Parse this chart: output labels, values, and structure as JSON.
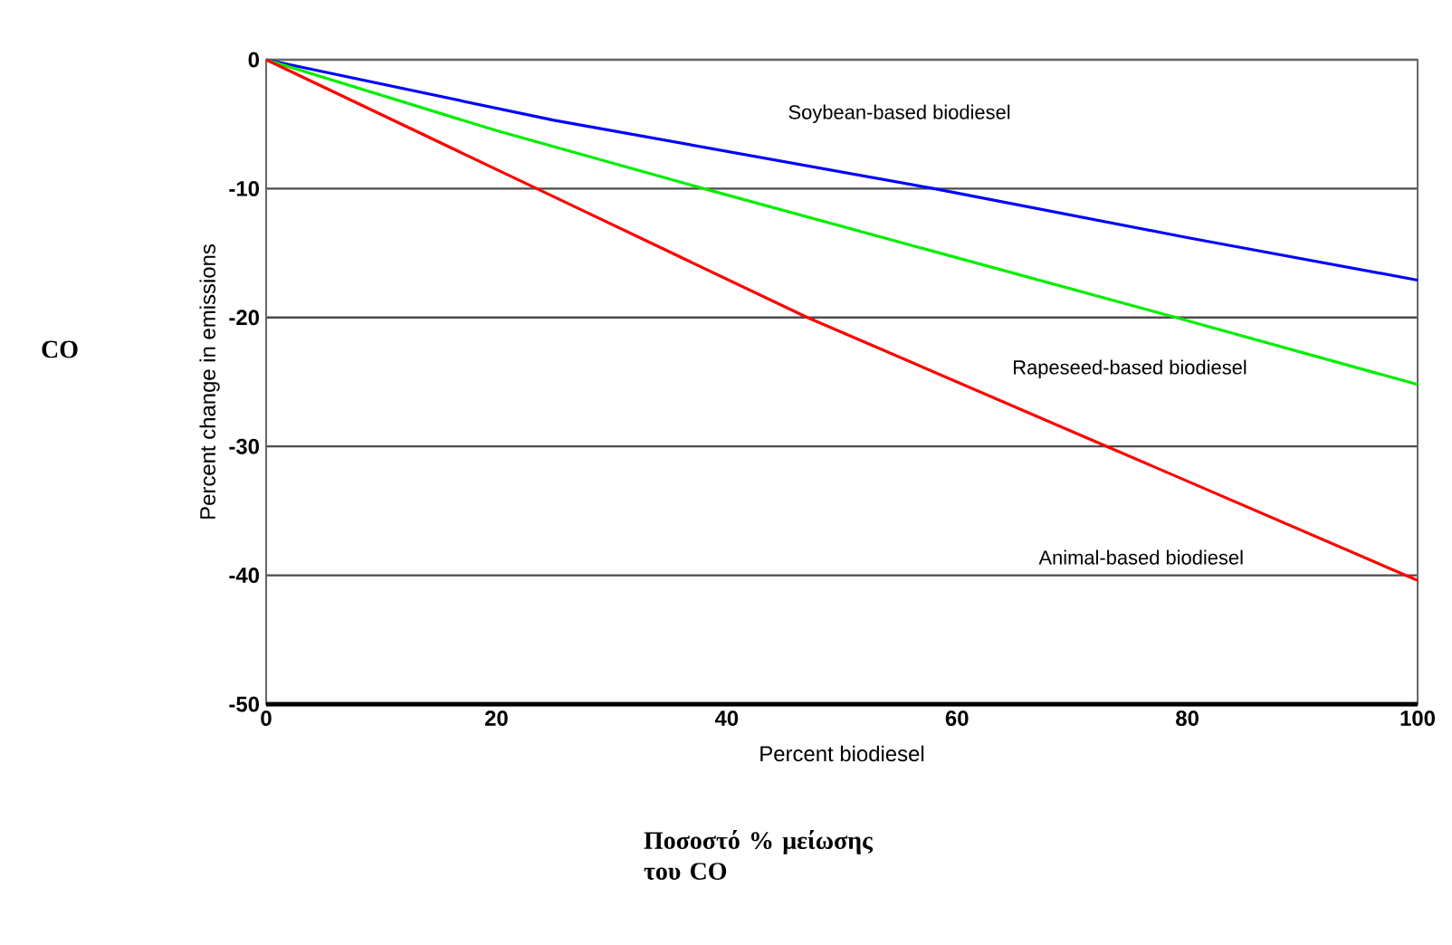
{
  "chart_data": {
    "type": "line",
    "xlabel": "Percent biodiesel",
    "ylabel": "Percent change in emissions",
    "xlim": [
      0,
      100
    ],
    "ylim": [
      -50,
      0
    ],
    "xticks": [
      0,
      20,
      40,
      60,
      80,
      100
    ],
    "yticks": [
      -50,
      -40,
      -30,
      -20,
      -10,
      0
    ],
    "grid": "y",
    "legend": false,
    "marker": "none",
    "line_style": "solid",
    "series": [
      {
        "name": "Soybean-based biodiesel",
        "color": "#0000ff",
        "x": [
          0,
          25,
          58,
          80,
          100
        ],
        "values": [
          0,
          -4.7,
          -10,
          -13.8,
          -17.1
        ]
      },
      {
        "name": "Rapeseed-based biodiesel",
        "color": "#00ee00",
        "x": [
          0,
          20,
          38,
          79,
          100
        ],
        "values": [
          0,
          -5.5,
          -10,
          -20,
          -25.2
        ]
      },
      {
        "name": "Animal-based biodiesel",
        "color": "#ff0000",
        "x": [
          0,
          23.5,
          47,
          73,
          100
        ],
        "values": [
          0,
          -10,
          -20,
          -30,
          -40.4
        ]
      }
    ],
    "annotations": [
      "CO",
      "Ποσοστό % μείωσης του CO"
    ]
  }
}
